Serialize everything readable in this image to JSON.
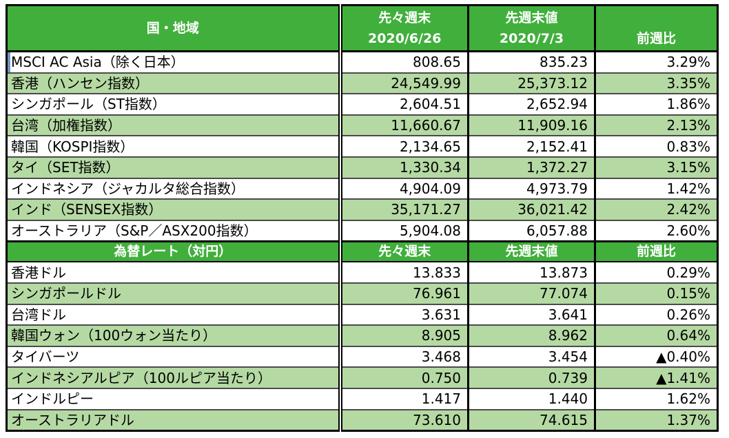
{
  "colors": {
    "header_green": "#41AF3C",
    "stripe_green": "#B5D9A3",
    "negative_red": "#FF0000",
    "selection_blue": "#7096C8",
    "grid_line": "#4a4a4a",
    "outer_border": "#000000"
  },
  "indices_section": {
    "header": {
      "region": "国・地域",
      "prev_label": "先々週末",
      "prev_date": "2020/6/26",
      "last_label": "先週末値",
      "last_date": "2020/7/3",
      "change_label": "前週比"
    },
    "rows": [
      {
        "label": "MSCI AC Asia（除く日本）",
        "prev": "808.65",
        "last": "835.23",
        "change": "3.29%",
        "negative": false
      },
      {
        "label": "香港（ハンセン指数）",
        "prev": "24,549.99",
        "last": "25,373.12",
        "change": "3.35%",
        "negative": false
      },
      {
        "label": "シンガポール（ST指数）",
        "prev": "2,604.51",
        "last": "2,652.94",
        "change": "1.86%",
        "negative": false
      },
      {
        "label": "台湾（加権指数）",
        "prev": "11,660.67",
        "last": "11,909.16",
        "change": "2.13%",
        "negative": false
      },
      {
        "label": "韓国（KOSPI指数）",
        "prev": "2,134.65",
        "last": "2,152.41",
        "change": "0.83%",
        "negative": false
      },
      {
        "label": "タイ（SET指数）",
        "prev": "1,330.34",
        "last": "1,372.27",
        "change": "3.15%",
        "negative": false
      },
      {
        "label": "インドネシア（ジャカルタ総合指数）",
        "prev": "4,904.09",
        "last": "4,973.79",
        "change": "1.42%",
        "negative": false
      },
      {
        "label": "インド（SENSEX指数）",
        "prev": "35,171.27",
        "last": "36,021.42",
        "change": "2.42%",
        "negative": false
      },
      {
        "label": "オーストラリア（S&P／ASX200指数）",
        "prev": "5,904.08",
        "last": "6,057.88",
        "change": "2.60%",
        "negative": false
      }
    ]
  },
  "fx_section": {
    "header": {
      "title": "為替レート（対円）",
      "prev_label": "先々週末",
      "last_label": "先週末値",
      "change_label": "前週比"
    },
    "rows": [
      {
        "label": "香港ドル",
        "prev": "13.833",
        "last": "13.873",
        "change": "0.29%",
        "negative": false
      },
      {
        "label": "シンガポールドル",
        "prev": "76.961",
        "last": "77.074",
        "change": "0.15%",
        "negative": false
      },
      {
        "label": "台湾ドル",
        "prev": "3.631",
        "last": "3.641",
        "change": "0.26%",
        "negative": false
      },
      {
        "label": "韓国ウォン（100ウォン当たり）",
        "prev": "8.905",
        "last": "8.962",
        "change": "0.64%",
        "negative": false
      },
      {
        "label": "タイバーツ",
        "prev": "3.468",
        "last": "3.454",
        "change": "▲0.40%",
        "negative": true
      },
      {
        "label": "インドネシアルピア（100ルピア当たり）",
        "prev": "0.750",
        "last": "0.739",
        "change": "▲1.41%",
        "negative": true
      },
      {
        "label": "インドルピー",
        "prev": "1.417",
        "last": "1.440",
        "change": "1.62%",
        "negative": false
      },
      {
        "label": "オーストラリアドル",
        "prev": "73.610",
        "last": "74.615",
        "change": "1.37%",
        "negative": false
      }
    ]
  }
}
